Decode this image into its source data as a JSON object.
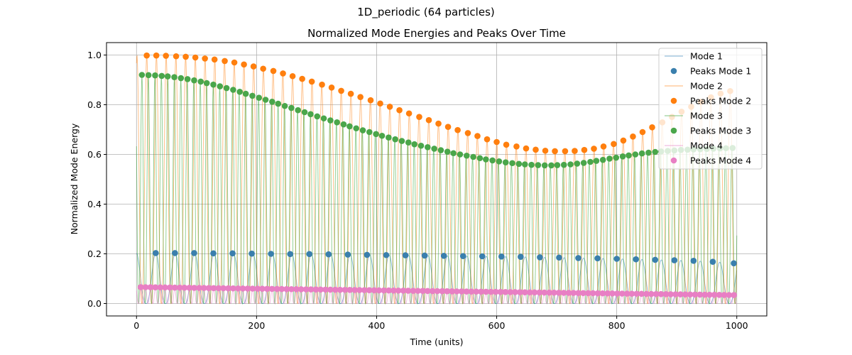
{
  "figure": {
    "suptitle": "1D_periodic (64 particles)"
  },
  "chart_data": {
    "type": "line",
    "title": "Normalized Mode Energies and Peaks Over Time",
    "xlabel": "Time (units)",
    "ylabel": "Normalized Mode Energy",
    "xlim": [
      -50,
      1050
    ],
    "ylim": [
      -0.05,
      1.05
    ],
    "xticks": [
      0,
      200,
      400,
      600,
      800,
      1000
    ],
    "yticks": [
      0.0,
      0.2,
      0.4,
      0.6,
      0.8,
      1.0
    ],
    "grid": true,
    "legend_position": "top-right",
    "series": [
      {
        "name": "Mode 1",
        "peaks_name": "Peaks Mode 1",
        "color": "#1f77b4",
        "peak_color": "#3a7fad",
        "period": 32.4,
        "first_peak": 32,
        "min_level": 0.0,
        "peak_times": [
          32,
          64,
          96,
          128,
          160,
          192,
          224,
          256,
          288,
          320,
          352,
          384,
          416,
          448,
          480,
          512,
          544,
          576,
          608,
          640,
          672,
          704,
          736,
          768,
          800,
          832,
          864,
          896,
          928,
          960,
          995
        ],
        "peak_values": [
          0.203,
          0.203,
          0.203,
          0.202,
          0.202,
          0.201,
          0.2,
          0.199,
          0.199,
          0.198,
          0.197,
          0.196,
          0.195,
          0.194,
          0.193,
          0.192,
          0.191,
          0.19,
          0.189,
          0.188,
          0.186,
          0.185,
          0.183,
          0.182,
          0.18,
          0.178,
          0.176,
          0.174,
          0.172,
          0.168,
          0.162
        ]
      },
      {
        "name": "Mode 2",
        "peaks_name": "Peaks Mode 2",
        "color": "#ff7f0e",
        "peak_color": "#ff7f0e",
        "period": 16.2,
        "first_peak": 17,
        "min_level": 0.0,
        "peak_times": [
          17,
          33,
          49,
          66,
          82,
          98,
          114,
          130,
          147,
          163,
          179,
          195,
          211,
          228,
          244,
          260,
          276,
          292,
          309,
          325,
          341,
          357,
          373,
          390,
          406,
          422,
          438,
          454,
          471,
          487,
          503,
          519,
          535,
          552,
          568,
          584,
          600,
          616,
          633,
          649,
          665,
          681,
          697,
          714,
          730,
          746,
          762,
          778,
          795,
          811,
          827,
          843,
          859,
          876,
          892,
          908,
          924,
          940,
          957,
          973,
          989
        ],
        "peak_values": [
          0.998,
          0.998,
          0.997,
          0.995,
          0.993,
          0.99,
          0.986,
          0.982,
          0.976,
          0.97,
          0.962,
          0.954,
          0.945,
          0.936,
          0.926,
          0.915,
          0.904,
          0.893,
          0.881,
          0.869,
          0.856,
          0.844,
          0.831,
          0.818,
          0.805,
          0.792,
          0.778,
          0.765,
          0.751,
          0.738,
          0.724,
          0.711,
          0.698,
          0.686,
          0.674,
          0.661,
          0.65,
          0.639,
          0.632,
          0.624,
          0.619,
          0.615,
          0.613,
          0.613,
          0.614,
          0.618,
          0.623,
          0.632,
          0.642,
          0.656,
          0.672,
          0.69,
          0.709,
          0.729,
          0.751,
          0.772,
          0.792,
          0.812,
          0.83,
          0.845,
          0.855
        ]
      },
      {
        "name": "Mode 3",
        "peaks_name": "Peaks Mode 3",
        "color": "#2ca02c",
        "peak_color": "#4aa64a",
        "period": 10.8,
        "first_peak": 9,
        "min_level": 0.0,
        "peak_times": [
          9,
          20,
          31,
          42,
          52,
          63,
          74,
          85,
          96,
          107,
          117,
          128,
          139,
          150,
          161,
          172,
          182,
          193,
          204,
          215,
          226,
          236,
          247,
          258,
          269,
          280,
          290,
          301,
          312,
          323,
          334,
          345,
          355,
          366,
          377,
          388,
          399,
          409,
          420,
          431,
          442,
          453,
          463,
          474,
          485,
          496,
          507,
          518,
          528,
          539,
          550,
          561,
          572,
          582,
          593,
          604,
          615,
          626,
          637,
          647,
          658,
          669,
          680,
          691,
          701,
          712,
          723,
          734,
          745,
          756,
          766,
          777,
          788,
          799,
          810,
          820,
          831,
          842,
          853,
          864,
          874,
          885,
          896,
          907,
          918,
          928,
          939,
          950,
          961,
          972,
          982,
          993
        ],
        "peak_values": [
          0.92,
          0.919,
          0.918,
          0.916,
          0.914,
          0.911,
          0.907,
          0.903,
          0.898,
          0.893,
          0.887,
          0.881,
          0.874,
          0.867,
          0.86,
          0.852,
          0.844,
          0.836,
          0.828,
          0.82,
          0.812,
          0.804,
          0.795,
          0.787,
          0.778,
          0.77,
          0.762,
          0.753,
          0.745,
          0.737,
          0.729,
          0.721,
          0.713,
          0.705,
          0.697,
          0.69,
          0.682,
          0.675,
          0.668,
          0.661,
          0.654,
          0.648,
          0.641,
          0.635,
          0.629,
          0.623,
          0.617,
          0.611,
          0.605,
          0.6,
          0.595,
          0.59,
          0.585,
          0.58,
          0.576,
          0.572,
          0.568,
          0.565,
          0.562,
          0.56,
          0.558,
          0.557,
          0.556,
          0.556,
          0.557,
          0.558,
          0.56,
          0.563,
          0.566,
          0.57,
          0.574,
          0.578,
          0.583,
          0.587,
          0.592,
          0.596,
          0.6,
          0.604,
          0.607,
          0.61,
          0.612,
          0.614,
          0.616,
          0.618,
          0.619,
          0.62,
          0.621,
          0.622,
          0.623,
          0.624,
          0.625,
          0.626
        ]
      },
      {
        "name": "Mode 4",
        "peaks_name": "Peaks Mode 4",
        "color": "#e377c2",
        "peak_color": "#e87fc4",
        "period": 8.1,
        "first_peak": 7,
        "min_level": 0.0,
        "peak_start_value": 0.066,
        "peak_end_value": 0.034
      }
    ]
  }
}
